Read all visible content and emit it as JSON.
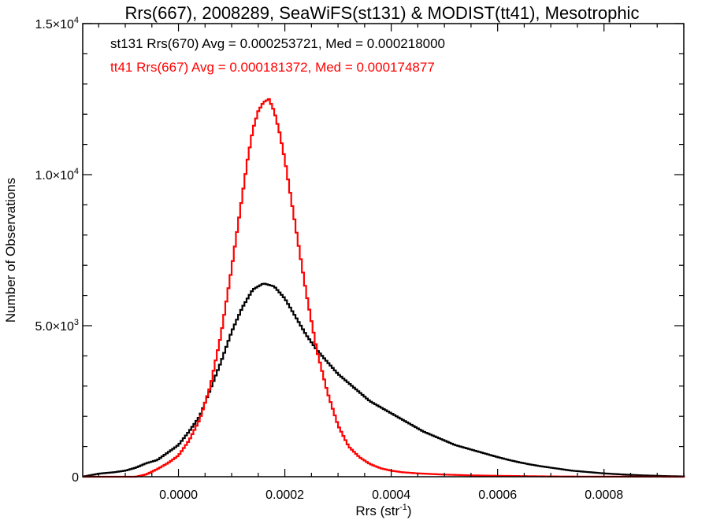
{
  "chart_data": {
    "type": "line",
    "title": "Rrs(667), 2008289, SeaWiFS(st131) & MODIST(tt41), Mesotrophic",
    "xlabel": "Rrs (str",
    "xlabel_sup": "-1",
    "xlabel_tail": ")",
    "ylabel": "Number of Observations",
    "xlim": [
      -0.00018,
      0.00095
    ],
    "ylim": [
      0,
      15000
    ],
    "grid": false,
    "x_ticks": [
      {
        "value": 0.0,
        "label": "0.0000"
      },
      {
        "value": 0.0002,
        "label": "0.0002"
      },
      {
        "value": 0.0004,
        "label": "0.0004"
      },
      {
        "value": 0.0006,
        "label": "0.0006"
      },
      {
        "value": 0.0008,
        "label": "0.0008"
      }
    ],
    "y_ticks": [
      {
        "value": 0,
        "mant": "0",
        "exp": ""
      },
      {
        "value": 5000,
        "mant": "5.0×10",
        "exp": "3"
      },
      {
        "value": 10000,
        "mant": "1.0×10",
        "exp": "4"
      },
      {
        "value": 15000,
        "mant": "1.5×10",
        "exp": "4"
      }
    ],
    "annotations": [
      {
        "text": "st131 Rrs(670) Avg = 0.000253721, Med = 0.000218000",
        "color": "#000000"
      },
      {
        "text": "tt41 Rrs(667) Avg = 0.000181372, Med = 0.000174877",
        "color": "#ff0000"
      }
    ],
    "series": [
      {
        "color": "#000000",
        "x": [
          -0.00018,
          -0.00015,
          -0.00012,
          -0.0001,
          -8e-05,
          -6e-05,
          -4e-05,
          -2e-05,
          0.0,
          2e-05,
          4e-05,
          6e-05,
          8e-05,
          0.0001,
          0.00012,
          0.00014,
          0.00016,
          0.00018,
          0.0002,
          0.00022,
          0.00024,
          0.00026,
          0.00028,
          0.0003,
          0.00032,
          0.00034,
          0.00036,
          0.00038,
          0.0004,
          0.00042,
          0.00044,
          0.00046,
          0.00048,
          0.0005,
          0.00052,
          0.00054,
          0.00056,
          0.00058,
          0.0006,
          0.00062,
          0.00064,
          0.00066,
          0.00068,
          0.0007,
          0.00072,
          0.00074,
          0.00076,
          0.00078,
          0.0008,
          0.00082,
          0.00084,
          0.00086,
          0.00088,
          0.0009,
          0.00092,
          0.00095
        ],
        "y": [
          0,
          100,
          150,
          200,
          300,
          450,
          550,
          800,
          1050,
          1500,
          2000,
          2900,
          3800,
          4800,
          5600,
          6200,
          6400,
          6300,
          5900,
          5300,
          4700,
          4200,
          3800,
          3400,
          3100,
          2800,
          2500,
          2300,
          2100,
          1900,
          1700,
          1500,
          1350,
          1200,
          1050,
          950,
          850,
          750,
          650,
          560,
          480,
          410,
          350,
          300,
          250,
          200,
          170,
          140,
          110,
          90,
          70,
          55,
          40,
          30,
          20,
          10
        ]
      },
      {
        "color": "#ff0000",
        "x": [
          -0.00018,
          -0.0001,
          -8e-05,
          -6e-05,
          -4e-05,
          -2e-05,
          0.0,
          2e-05,
          4e-05,
          6e-05,
          8e-05,
          0.0001,
          0.00012,
          0.00013,
          0.00014,
          0.00015,
          0.00016,
          0.00017,
          0.00018,
          0.00019,
          0.0002,
          0.00021,
          0.00022,
          0.00023,
          0.00024,
          0.00026,
          0.00028,
          0.0003,
          0.00032,
          0.00034,
          0.00036,
          0.00038,
          0.0004,
          0.00042,
          0.00045,
          0.0005,
          0.00055,
          0.0006,
          0.00065,
          0.0007,
          0.00075,
          0.00095
        ],
        "y": [
          0,
          0,
          0,
          80,
          250,
          450,
          700,
          1200,
          1900,
          3000,
          4700,
          6900,
          9300,
          10500,
          11500,
          12100,
          12400,
          12500,
          12100,
          11400,
          10500,
          9400,
          8300,
          7200,
          6100,
          4200,
          2800,
          1700,
          1000,
          650,
          420,
          280,
          200,
          150,
          110,
          70,
          45,
          30,
          20,
          10,
          5,
          0
        ]
      }
    ]
  }
}
